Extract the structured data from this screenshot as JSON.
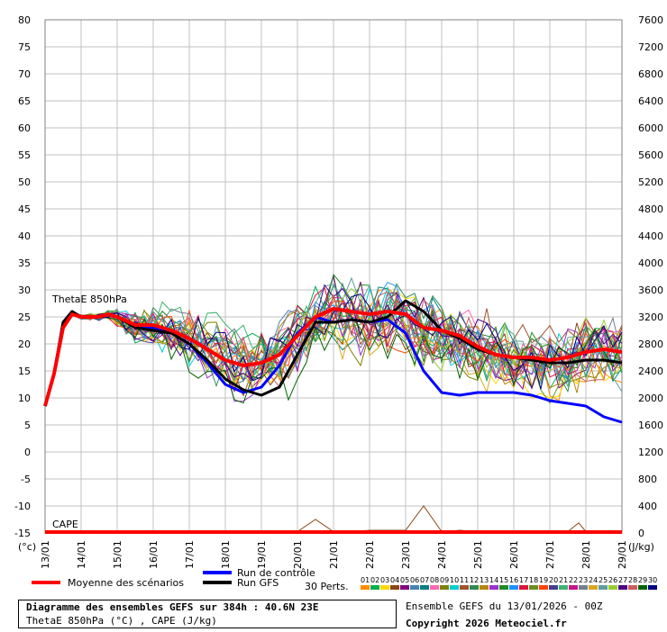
{
  "chart_data": {
    "type": "line",
    "title": "Diagramme des ensembles GEFS sur 384h : 40.6N 23E",
    "subtitle": "ThetaE 850hPa (°C) , CAPE (J/kg)",
    "run_label": "Ensemble GEFS du 13/01/2026 - 00Z",
    "copyright": "Copyright 2026 Meteociel.fr",
    "left_unit": "(°c)",
    "right_unit": "(J/kg)",
    "thetae_label": "ThetaE 850hPa",
    "cape_label": "CAPE",
    "x_ticks": [
      "13/01",
      "14/01",
      "15/01",
      "16/01",
      "17/01",
      "18/01",
      "19/01",
      "20/01",
      "21/01",
      "22/01",
      "23/01",
      "24/01",
      "25/01",
      "26/01",
      "27/01",
      "28/01",
      "29/01"
    ],
    "y_left_ticks": [
      "80",
      "75",
      "70",
      "65",
      "60",
      "55",
      "50",
      "45",
      "40",
      "35",
      "30",
      "25",
      "20",
      "15",
      "10",
      "5",
      "0",
      "-5",
      "-10",
      "-15"
    ],
    "y_right_ticks": [
      "7600",
      "7200",
      "6800",
      "6400",
      "6000",
      "5600",
      "5200",
      "4800",
      "4400",
      "4000",
      "3600",
      "3200",
      "2800",
      "2400",
      "2000",
      "1600",
      "1200",
      "800",
      "400",
      "0"
    ],
    "ylim_left": [
      -15,
      80
    ],
    "ylim_right": [
      0,
      7600
    ],
    "legend": {
      "mean": "Moyenne des scénarios",
      "control": "Run de contrôle",
      "gfs": "Run GFS",
      "perts": "30 Perts.",
      "pert_labels": [
        "01",
        "02",
        "03",
        "04",
        "05",
        "06",
        "07",
        "08",
        "09",
        "10",
        "11",
        "12",
        "13",
        "14",
        "15",
        "16",
        "17",
        "18",
        "19",
        "20",
        "21",
        "22",
        "23",
        "24",
        "25",
        "26",
        "27",
        "28",
        "29",
        "30"
      ],
      "colors": {
        "mean": "#ff0000",
        "control": "#0000ff",
        "gfs": "#000000"
      },
      "pert_colors": [
        "#ff8c00",
        "#00b050",
        "#ffd700",
        "#8b4513",
        "#800080",
        "#4682b4",
        "#008080",
        "#ff69b4",
        "#808000",
        "#00ced1",
        "#a0522d",
        "#2e8b57",
        "#b8860b",
        "#9932cc",
        "#228b22",
        "#1e90ff",
        "#dc143c",
        "#6b8e23",
        "#ff4500",
        "#483d8b",
        "#3cb371",
        "#c71585",
        "#708090",
        "#daa520",
        "#5f9ea0",
        "#9acd32",
        "#4b0082",
        "#cd5c5c",
        "#006400",
        "#000080"
      ]
    },
    "series": [
      {
        "name": "Moyenne des scénarios",
        "x": [
          0,
          0.25,
          0.5,
          0.75,
          1,
          1.25,
          1.5,
          1.75,
          2,
          2.5,
          3,
          3.5,
          4,
          4.5,
          5,
          5.5,
          6,
          6.5,
          7,
          7.5,
          8,
          8.5,
          9,
          9.5,
          10,
          10.5,
          11,
          11.5,
          12,
          12.5,
          13,
          13.5,
          14,
          14.5,
          15,
          15.5,
          16
        ],
        "values": [
          8.5,
          14.5,
          23,
          25.5,
          25,
          25,
          25,
          25.5,
          25,
          23.5,
          23.5,
          22.5,
          21,
          19,
          17,
          16,
          16.5,
          18,
          21.5,
          25,
          26.5,
          26,
          25.5,
          26,
          25.5,
          23,
          22.5,
          21.5,
          19.5,
          18,
          17.5,
          17.5,
          17,
          17.5,
          18.5,
          19,
          18.5
        ]
      },
      {
        "name": "Run de contrôle",
        "x": [
          0,
          0.25,
          0.5,
          0.75,
          1,
          1.25,
          1.5,
          1.75,
          2,
          2.5,
          3,
          3.5,
          4,
          4.5,
          5,
          5.5,
          6,
          6.5,
          7,
          7.5,
          8,
          8.5,
          9,
          9.5,
          10,
          10.5,
          11,
          11.5,
          12,
          12.5,
          13,
          13.5,
          14,
          14.5,
          15,
          15.5,
          16
        ],
        "values": [
          8.5,
          14.5,
          24,
          26,
          25,
          25,
          25,
          25.5,
          25,
          23.5,
          23,
          22,
          20,
          16.5,
          12.5,
          11,
          12,
          16,
          22,
          25,
          24,
          24.5,
          24,
          24.5,
          22,
          15,
          11,
          10.5,
          11,
          11,
          11,
          10.5,
          9.5,
          9,
          8.5,
          6.5,
          5.5
        ]
      },
      {
        "name": "Run GFS",
        "x": [
          0,
          0.25,
          0.5,
          0.75,
          1,
          1.25,
          1.5,
          1.75,
          2,
          2.5,
          3,
          3.5,
          4,
          4.5,
          5,
          5.5,
          6,
          6.5,
          7,
          7.5,
          8,
          8.5,
          9,
          9.5,
          10,
          10.5,
          11,
          11.5,
          12,
          12.5,
          13,
          13.5,
          14,
          14.5,
          15,
          15.5,
          16
        ],
        "values": [
          8.5,
          14.5,
          24,
          26,
          25,
          25,
          25,
          25.5,
          25,
          23,
          22.5,
          22,
          20,
          17,
          13.5,
          11.5,
          10.5,
          12,
          18,
          24,
          24,
          24.5,
          24,
          25,
          28,
          26,
          22.5,
          21,
          19,
          18,
          17.5,
          17,
          16.5,
          16.5,
          17,
          17,
          16.5
        ]
      }
    ],
    "cape_series": {
      "name": "CAPE",
      "x": [
        0,
        3,
        6,
        7,
        7.5,
        8,
        8.5,
        9,
        10,
        10.5,
        11,
        11.5,
        12,
        14.5,
        14.8,
        15,
        16
      ],
      "values": [
        0,
        20,
        20,
        20,
        200,
        20,
        20,
        40,
        40,
        400,
        20,
        40,
        20,
        20,
        150,
        20,
        20
      ]
    }
  }
}
